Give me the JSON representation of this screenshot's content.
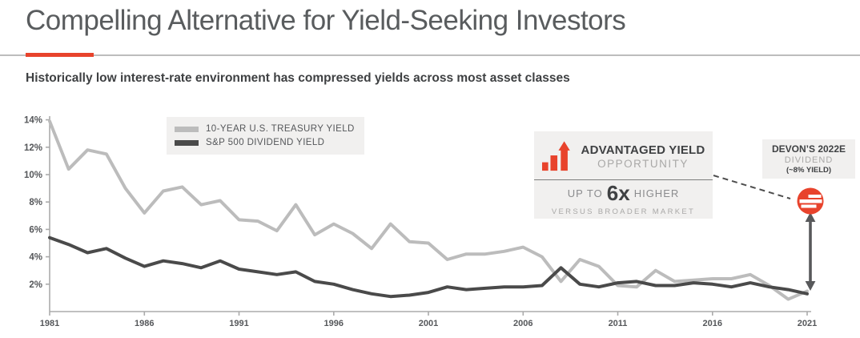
{
  "slide": {
    "title": "Compelling Alternative for Yield-Seeking Investors",
    "subtitle": "Historically low interest-rate environment has compressed yields across most asset classes"
  },
  "chart_data": {
    "type": "line",
    "title": "",
    "xlabel": "",
    "ylabel": "",
    "x": [
      1981,
      1982,
      1983,
      1984,
      1985,
      1986,
      1987,
      1988,
      1989,
      1990,
      1991,
      1992,
      1993,
      1994,
      1995,
      1996,
      1997,
      1998,
      1999,
      2000,
      2001,
      2002,
      2003,
      2004,
      2005,
      2006,
      2007,
      2008,
      2009,
      2010,
      2011,
      2012,
      2013,
      2014,
      2015,
      2016,
      2017,
      2018,
      2019,
      2020,
      2021
    ],
    "series": [
      {
        "name": "10-YEAR U.S. TREASURY YIELD",
        "color": "#bcbcbc",
        "values": [
          13.9,
          10.4,
          11.8,
          11.5,
          9.0,
          7.2,
          8.8,
          9.1,
          7.8,
          8.1,
          6.7,
          6.6,
          5.9,
          7.8,
          5.6,
          6.4,
          5.7,
          4.6,
          6.4,
          5.1,
          5.0,
          3.8,
          4.2,
          4.2,
          4.4,
          4.7,
          4.0,
          2.2,
          3.8,
          3.3,
          1.9,
          1.8,
          3.0,
          2.2,
          2.3,
          2.4,
          2.4,
          2.7,
          1.9,
          0.9,
          1.5
        ]
      },
      {
        "name": "S&P 500 DIVIDEND YIELD",
        "color": "#4a4a4a",
        "values": [
          5.4,
          4.9,
          4.3,
          4.6,
          3.9,
          3.3,
          3.7,
          3.5,
          3.2,
          3.7,
          3.1,
          2.9,
          2.7,
          2.9,
          2.2,
          2.0,
          1.6,
          1.3,
          1.1,
          1.2,
          1.4,
          1.8,
          1.6,
          1.7,
          1.8,
          1.8,
          1.9,
          3.2,
          2.0,
          1.8,
          2.1,
          2.2,
          1.9,
          1.9,
          2.1,
          2.0,
          1.8,
          2.1,
          1.8,
          1.6,
          1.3
        ]
      }
    ],
    "xticks": [
      1981,
      1986,
      1991,
      1996,
      2001,
      2006,
      2011,
      2016,
      2021
    ],
    "yticks": [
      2,
      4,
      6,
      8,
      10,
      12,
      14
    ],
    "ytick_suffix": "%",
    "ylim": [
      0,
      14.2
    ],
    "grid": false,
    "legend_position": "top-left-inside"
  },
  "annotations": {
    "advantaged_yield": {
      "title": "ADVANTAGED YIELD",
      "subtitle": "OPPORTUNITY",
      "stat_prefix": "UP TO",
      "stat_value": "6x",
      "stat_suffix": "HIGHER",
      "footnote": "VERSUS BROADER MARKET"
    },
    "devon_dividend": {
      "title": "DEVON’S 2022E",
      "subtitle": "DIVIDEND",
      "detail": "(~8% YIELD)",
      "marker_value_pct": 8
    }
  },
  "colors": {
    "accent_red": "#e8432c",
    "title_gray": "#595c5e",
    "text_dark": "#3f4143",
    "text_mid": "#8b8c8e",
    "text_light": "#a9a8a7",
    "axis": "#ababab",
    "tick_label": "#55575a",
    "panel_bg": "#f1f0ef",
    "connector": "#4d4d4d",
    "arrow": "#58595b",
    "treasury_line": "#bcbcbc",
    "sp500_line": "#4a4a4a"
  }
}
